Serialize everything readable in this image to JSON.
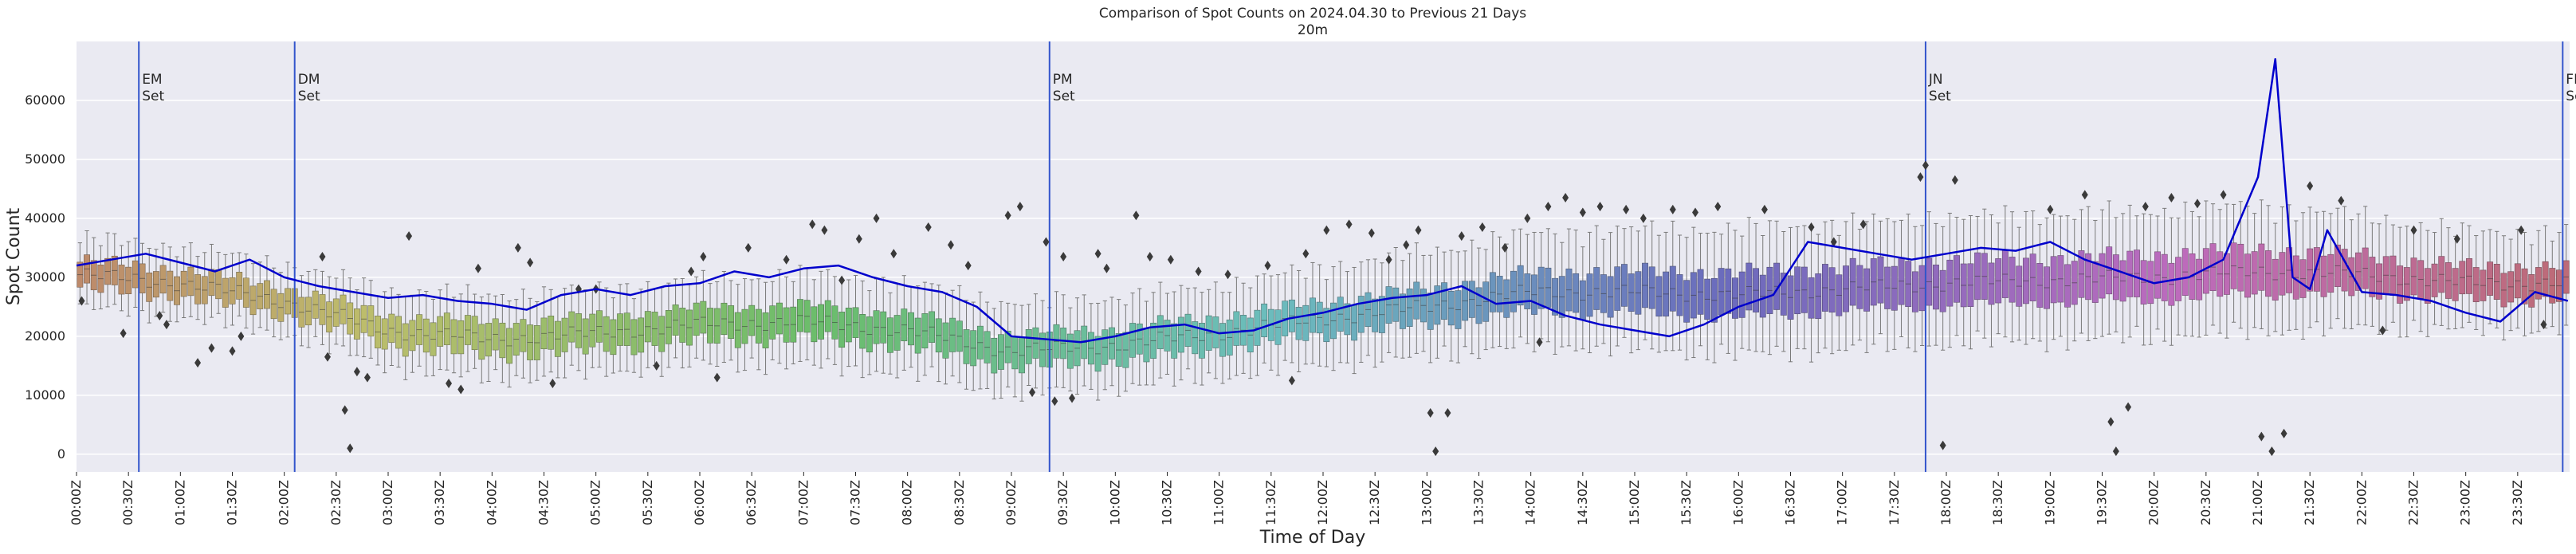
{
  "chart_data": {
    "type": "box",
    "title": "Comparison of Spot Counts on 2024.04.30 to Previous 21 Days",
    "subtitle": "20m",
    "xlabel": "Time of Day",
    "ylabel": "Spot Count",
    "ylim": [
      -3000,
      70000
    ],
    "yticks": [
      0,
      10000,
      20000,
      30000,
      40000,
      50000,
      60000
    ],
    "ytick_labels": [
      "0",
      "10000",
      "20000",
      "30000",
      "40000",
      "50000",
      "60000"
    ],
    "xlim_minutes": [
      0,
      1440
    ],
    "xticks_minutes": [
      0,
      30,
      60,
      90,
      120,
      150,
      180,
      210,
      240,
      270,
      300,
      330,
      360,
      390,
      420,
      450,
      480,
      510,
      540,
      570,
      600,
      630,
      660,
      690,
      720,
      750,
      780,
      810,
      840,
      870,
      900,
      930,
      960,
      990,
      1020,
      1050,
      1080,
      1110,
      1140,
      1170,
      1200,
      1230,
      1260,
      1290,
      1320,
      1350,
      1380,
      1410
    ],
    "xtick_labels": [
      "00:00Z",
      "00:30Z",
      "01:00Z",
      "01:30Z",
      "02:00Z",
      "02:30Z",
      "03:00Z",
      "03:30Z",
      "04:00Z",
      "04:30Z",
      "05:00Z",
      "05:30Z",
      "06:00Z",
      "06:30Z",
      "07:00Z",
      "07:30Z",
      "08:00Z",
      "08:30Z",
      "09:00Z",
      "09:30Z",
      "10:00Z",
      "10:30Z",
      "11:00Z",
      "11:30Z",
      "12:00Z",
      "12:30Z",
      "13:00Z",
      "13:30Z",
      "14:00Z",
      "14:30Z",
      "15:00Z",
      "15:30Z",
      "16:00Z",
      "16:30Z",
      "17:00Z",
      "17:30Z",
      "18:00Z",
      "18:30Z",
      "19:00Z",
      "19:30Z",
      "20:00Z",
      "20:30Z",
      "21:00Z",
      "21:30Z",
      "22:00Z",
      "22:30Z",
      "23:00Z",
      "23:30Z"
    ],
    "bin_minutes": 4,
    "box_anchor_hours": [
      0,
      1,
      2,
      3,
      4,
      5,
      6,
      7,
      8,
      9,
      10,
      11,
      12,
      13,
      14,
      15,
      16,
      17,
      18,
      19,
      20,
      21,
      22,
      23,
      24
    ],
    "box_median_anchors": [
      30500,
      29000,
      26000,
      21000,
      19500,
      20500,
      22000,
      22500,
      21000,
      17500,
      18500,
      20500,
      23000,
      25000,
      27500,
      27500,
      27000,
      28000,
      29000,
      29500,
      30000,
      31000,
      30500,
      29000,
      29000
    ],
    "box_iqr_anchors": [
      5000,
      5000,
      5000,
      5500,
      6000,
      6000,
      6000,
      6000,
      6000,
      6000,
      6000,
      6000,
      6000,
      6500,
      7000,
      7500,
      8000,
      8000,
      8000,
      8000,
      8000,
      8000,
      7000,
      6000,
      6000
    ],
    "box_whisker_span_anchors": [
      10000,
      10000,
      10000,
      11000,
      12000,
      12000,
      12000,
      13000,
      13000,
      13000,
      13000,
      13000,
      14000,
      15000,
      16000,
      17000,
      18000,
      18000,
      18000,
      18000,
      18000,
      18000,
      16000,
      14000,
      14000
    ],
    "series": [
      {
        "name": "2024.04.30",
        "color": "#0000cc",
        "x_minutes": [
          0,
          20,
          40,
          60,
          80,
          100,
          120,
          140,
          160,
          180,
          200,
          220,
          240,
          260,
          280,
          300,
          320,
          340,
          360,
          380,
          400,
          420,
          440,
          460,
          480,
          500,
          520,
          540,
          560,
          580,
          600,
          620,
          640,
          660,
          680,
          700,
          720,
          740,
          760,
          780,
          800,
          820,
          840,
          860,
          880,
          900,
          920,
          940,
          960,
          980,
          1000,
          1020,
          1040,
          1060,
          1080,
          1100,
          1120,
          1140,
          1160,
          1180,
          1200,
          1220,
          1240,
          1260,
          1270,
          1280,
          1290,
          1300,
          1320,
          1340,
          1360,
          1380,
          1400,
          1420,
          1439
        ],
        "values": [
          32000,
          33000,
          34000,
          32500,
          31000,
          33000,
          30000,
          28500,
          27500,
          26500,
          27000,
          26000,
          25500,
          24500,
          27000,
          28000,
          27000,
          28500,
          29000,
          31000,
          30000,
          31500,
          32000,
          30000,
          28500,
          27500,
          25000,
          20000,
          19500,
          19000,
          20000,
          21500,
          22000,
          20500,
          21000,
          23000,
          24000,
          25500,
          26500,
          27000,
          28500,
          25500,
          26000,
          23500,
          22000,
          21000,
          20000,
          22000,
          25000,
          27000,
          36000,
          35000,
          34000,
          33000,
          34000,
          35000,
          34500,
          36000,
          33000,
          31000,
          29000,
          30000,
          33000,
          47000,
          67000,
          30000,
          28000,
          38000,
          27500,
          27000,
          26000,
          24000,
          22500,
          27500,
          26000
        ]
      }
    ],
    "outliers": [
      {
        "x": 3,
        "y": 26000
      },
      {
        "x": 27,
        "y": 20500
      },
      {
        "x": 48,
        "y": 23500
      },
      {
        "x": 52,
        "y": 22000
      },
      {
        "x": 70,
        "y": 15500
      },
      {
        "x": 78,
        "y": 18000
      },
      {
        "x": 90,
        "y": 17500
      },
      {
        "x": 95,
        "y": 20000
      },
      {
        "x": 142,
        "y": 33500
      },
      {
        "x": 145,
        "y": 16500
      },
      {
        "x": 155,
        "y": 7500
      },
      {
        "x": 158,
        "y": 1000
      },
      {
        "x": 162,
        "y": 14000
      },
      {
        "x": 168,
        "y": 13000
      },
      {
        "x": 192,
        "y": 37000
      },
      {
        "x": 215,
        "y": 12000
      },
      {
        "x": 222,
        "y": 11000
      },
      {
        "x": 232,
        "y": 31500
      },
      {
        "x": 255,
        "y": 35000
      },
      {
        "x": 262,
        "y": 32500
      },
      {
        "x": 275,
        "y": 12000
      },
      {
        "x": 290,
        "y": 28000
      },
      {
        "x": 300,
        "y": 28000
      },
      {
        "x": 335,
        "y": 15000
      },
      {
        "x": 355,
        "y": 31000
      },
      {
        "x": 362,
        "y": 33500
      },
      {
        "x": 370,
        "y": 13000
      },
      {
        "x": 388,
        "y": 35000
      },
      {
        "x": 410,
        "y": 33000
      },
      {
        "x": 425,
        "y": 39000
      },
      {
        "x": 432,
        "y": 38000
      },
      {
        "x": 442,
        "y": 29500
      },
      {
        "x": 452,
        "y": 36500
      },
      {
        "x": 462,
        "y": 40000
      },
      {
        "x": 472,
        "y": 34000
      },
      {
        "x": 492,
        "y": 38500
      },
      {
        "x": 505,
        "y": 35500
      },
      {
        "x": 515,
        "y": 32000
      },
      {
        "x": 538,
        "y": 40500
      },
      {
        "x": 545,
        "y": 42000
      },
      {
        "x": 552,
        "y": 10500
      },
      {
        "x": 560,
        "y": 36000
      },
      {
        "x": 565,
        "y": 9000
      },
      {
        "x": 570,
        "y": 33500
      },
      {
        "x": 575,
        "y": 9500
      },
      {
        "x": 590,
        "y": 34000
      },
      {
        "x": 595,
        "y": 31500
      },
      {
        "x": 612,
        "y": 40500
      },
      {
        "x": 620,
        "y": 33500
      },
      {
        "x": 632,
        "y": 33000
      },
      {
        "x": 648,
        "y": 31000
      },
      {
        "x": 665,
        "y": 30500
      },
      {
        "x": 688,
        "y": 32000
      },
      {
        "x": 702,
        "y": 12500
      },
      {
        "x": 710,
        "y": 34000
      },
      {
        "x": 722,
        "y": 38000
      },
      {
        "x": 735,
        "y": 39000
      },
      {
        "x": 748,
        "y": 37500
      },
      {
        "x": 758,
        "y": 33000
      },
      {
        "x": 768,
        "y": 35500
      },
      {
        "x": 775,
        "y": 38000
      },
      {
        "x": 782,
        "y": 7000
      },
      {
        "x": 785,
        "y": 500
      },
      {
        "x": 792,
        "y": 7000
      },
      {
        "x": 800,
        "y": 37000
      },
      {
        "x": 812,
        "y": 38500
      },
      {
        "x": 825,
        "y": 35000
      },
      {
        "x": 838,
        "y": 40000
      },
      {
        "x": 845,
        "y": 19000
      },
      {
        "x": 850,
        "y": 42000
      },
      {
        "x": 860,
        "y": 43500
      },
      {
        "x": 870,
        "y": 41000
      },
      {
        "x": 880,
        "y": 42000
      },
      {
        "x": 895,
        "y": 41500
      },
      {
        "x": 905,
        "y": 40000
      },
      {
        "x": 922,
        "y": 41500
      },
      {
        "x": 935,
        "y": 41000
      },
      {
        "x": 948,
        "y": 42000
      },
      {
        "x": 975,
        "y": 41500
      },
      {
        "x": 1002,
        "y": 38500
      },
      {
        "x": 1015,
        "y": 36000
      },
      {
        "x": 1032,
        "y": 39000
      },
      {
        "x": 1065,
        "y": 47000
      },
      {
        "x": 1068,
        "y": 49000
      },
      {
        "x": 1078,
        "y": 1500
      },
      {
        "x": 1085,
        "y": 46500
      },
      {
        "x": 1140,
        "y": 41500
      },
      {
        "x": 1160,
        "y": 44000
      },
      {
        "x": 1175,
        "y": 5500
      },
      {
        "x": 1178,
        "y": 500
      },
      {
        "x": 1185,
        "y": 8000
      },
      {
        "x": 1195,
        "y": 42000
      },
      {
        "x": 1210,
        "y": 43500
      },
      {
        "x": 1225,
        "y": 42500
      },
      {
        "x": 1240,
        "y": 44000
      },
      {
        "x": 1262,
        "y": 3000
      },
      {
        "x": 1268,
        "y": 500
      },
      {
        "x": 1275,
        "y": 3500
      },
      {
        "x": 1290,
        "y": 45500
      },
      {
        "x": 1308,
        "y": 43000
      },
      {
        "x": 1332,
        "y": 21000
      },
      {
        "x": 1350,
        "y": 38000
      },
      {
        "x": 1375,
        "y": 36500
      },
      {
        "x": 1412,
        "y": 38000
      },
      {
        "x": 1425,
        "y": 22000
      }
    ],
    "vlines": [
      {
        "x": 36,
        "label_line1": "EM",
        "label_line2": "Set"
      },
      {
        "x": 126,
        "label_line1": "DM",
        "label_line2": "Set"
      },
      {
        "x": 562,
        "label_line1": "PM",
        "label_line2": "Set"
      },
      {
        "x": 1068,
        "label_line1": "JN",
        "label_line2": "Set"
      },
      {
        "x": 1436,
        "label_line1": "FN",
        "label_line2": "Set"
      }
    ],
    "vline_color": "#3355cc",
    "background_color": "#eaeaf2",
    "grid": true,
    "legend": "none"
  }
}
